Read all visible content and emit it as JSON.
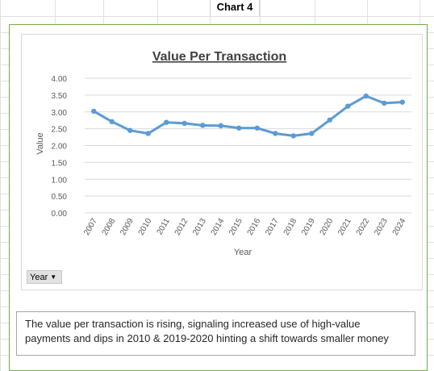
{
  "sheet": {
    "title": "Chart 4"
  },
  "field_button": {
    "label": "Year",
    "icon": "dropdown-arrow-icon"
  },
  "note": {
    "text": "The value per transaction is rising, signaling increased use of high-value payments and dips in 2010 & 2019-2020 hinting a shift towards smaller money"
  },
  "colors": {
    "line": "#5b9bd5",
    "frame": "#70ad47"
  },
  "chart_data": {
    "type": "line",
    "title": "Value Per Transaction",
    "xlabel": "Year",
    "ylabel": "Value",
    "categories": [
      "2007",
      "2008",
      "2009",
      "2010",
      "2011",
      "2012",
      "2013",
      "2014",
      "2015",
      "2016",
      "2017",
      "2018",
      "2019",
      "2020",
      "2021",
      "2022",
      "2023",
      "2024"
    ],
    "series": [
      {
        "values": [
          3.02,
          2.71,
          2.45,
          2.36,
          2.69,
          2.66,
          2.6,
          2.59,
          2.52,
          2.52,
          2.36,
          2.29,
          2.36,
          2.76,
          3.17,
          3.47,
          3.26,
          3.29
        ]
      }
    ],
    "ylim": [
      0,
      4
    ],
    "yticks": [
      "0.00",
      "0.50",
      "1.00",
      "1.50",
      "2.00",
      "2.50",
      "3.00",
      "3.50",
      "4.00"
    ],
    "grid": true,
    "legend": "none"
  }
}
